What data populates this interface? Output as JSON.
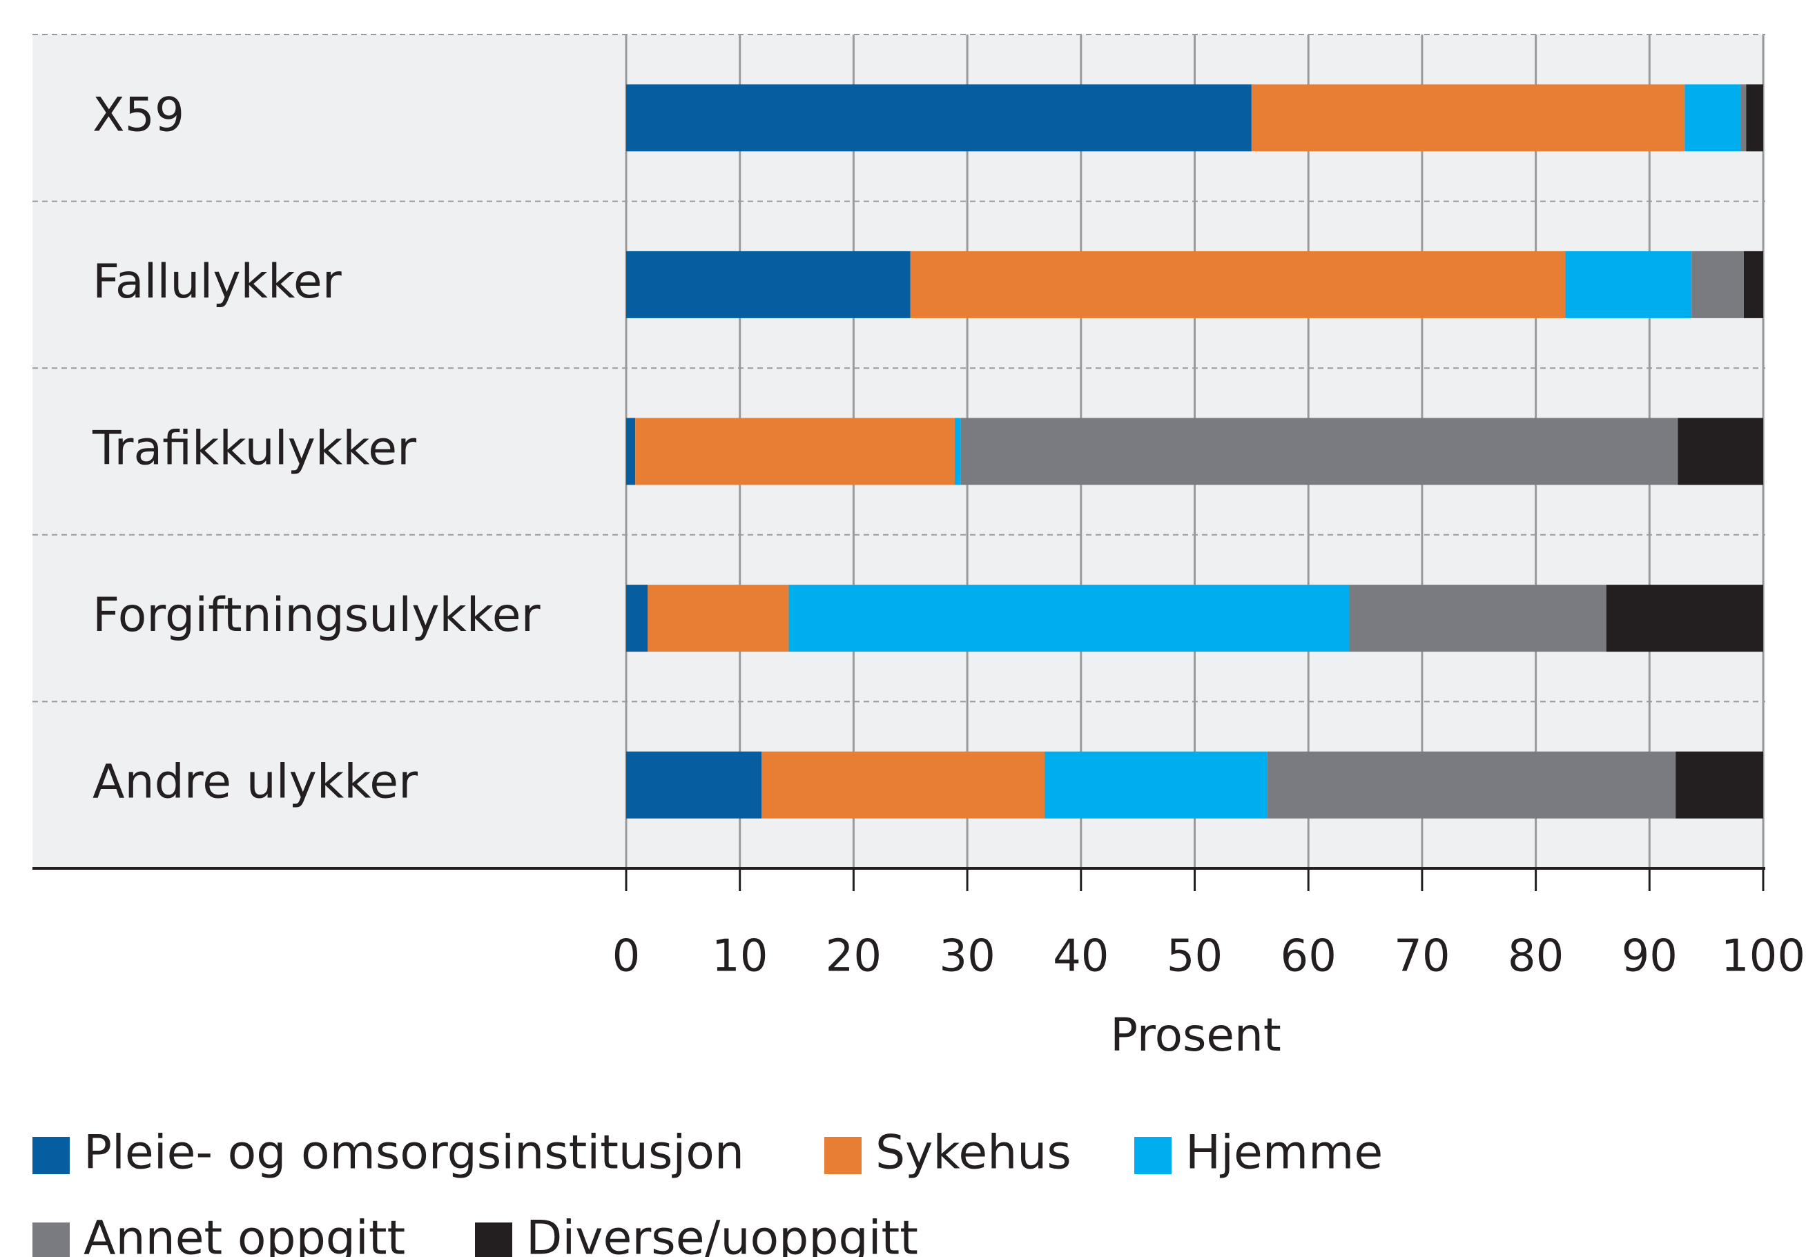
{
  "chart_data": {
    "type": "stacked_barh",
    "categories": [
      "X59",
      "Fallulykker",
      "Trafikkulykker",
      "Forgiftningsulykker",
      "Andre ulykker"
    ],
    "series": [
      {
        "name": "Pleie- og omsorgsinstitusjon",
        "color": "#065d9f",
        "values": [
          55.0,
          25.0,
          0.8,
          1.9,
          11.9
        ]
      },
      {
        "name": "Sykehus",
        "color": "#e87e33",
        "values": [
          38.1,
          57.6,
          28.1,
          12.4,
          24.9
        ]
      },
      {
        "name": "Hjemme",
        "color": "#00aeef",
        "values": [
          4.9,
          11.1,
          0.5,
          49.3,
          19.6
        ]
      },
      {
        "name": "Annet oppgitt",
        "color": "#7a7b80",
        "values": [
          0.5,
          4.6,
          63.1,
          22.6,
          35.9
        ]
      },
      {
        "name": "Diverse/uoppgitt",
        "color": "#231f20",
        "values": [
          1.5,
          1.7,
          7.5,
          13.8,
          7.7
        ]
      }
    ],
    "xlabel": "Prosent",
    "xlim": [
      0,
      100
    ],
    "xticks": [
      0,
      10,
      20,
      30,
      40,
      50,
      60,
      70,
      80,
      90,
      100
    ],
    "grid": true,
    "legend": "bottom"
  }
}
